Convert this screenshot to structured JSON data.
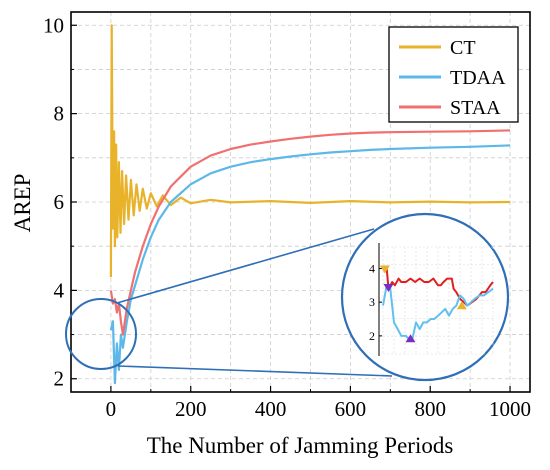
{
  "chart_data": {
    "type": "line",
    "title": "",
    "xlabel": "The Number of Jamming Periods",
    "ylabel": "AREP",
    "xlim": [
      -100,
      1050
    ],
    "ylim": [
      1.7,
      10.3
    ],
    "xticks": [
      0,
      200,
      400,
      600,
      800,
      1000
    ],
    "yticks": [
      2,
      4,
      6,
      8,
      10
    ],
    "grid": true,
    "legend_position": "top-right",
    "series": [
      {
        "name": "CT",
        "color": "#E8B22A",
        "points": [
          [
            0,
            4.3
          ],
          [
            2,
            10.0
          ],
          [
            5,
            5.4
          ],
          [
            8,
            7.6
          ],
          [
            10,
            5.0
          ],
          [
            13,
            7.3
          ],
          [
            16,
            5.2
          ],
          [
            20,
            6.9
          ],
          [
            24,
            5.3
          ],
          [
            28,
            6.7
          ],
          [
            33,
            5.5
          ],
          [
            38,
            6.6
          ],
          [
            44,
            5.6
          ],
          [
            50,
            6.5
          ],
          [
            57,
            5.7
          ],
          [
            64,
            6.4
          ],
          [
            72,
            5.8
          ],
          [
            80,
            6.3
          ],
          [
            90,
            5.85
          ],
          [
            100,
            6.2
          ],
          [
            115,
            5.9
          ],
          [
            130,
            6.15
          ],
          [
            150,
            5.93
          ],
          [
            175,
            6.1
          ],
          [
            200,
            5.97
          ],
          [
            250,
            6.05
          ],
          [
            300,
            5.99
          ],
          [
            400,
            6.02
          ],
          [
            500,
            5.98
          ],
          [
            600,
            6.02
          ],
          [
            700,
            5.99
          ],
          [
            800,
            6.01
          ],
          [
            900,
            5.99
          ],
          [
            1000,
            6.0
          ]
        ]
      },
      {
        "name": "TDAA",
        "color": "#5BB8E8",
        "points": [
          [
            0,
            3.1
          ],
          [
            5,
            3.3
          ],
          [
            10,
            1.9
          ],
          [
            15,
            2.8
          ],
          [
            20,
            2.2
          ],
          [
            25,
            3.0
          ],
          [
            30,
            2.7
          ],
          [
            40,
            3.3
          ],
          [
            50,
            3.8
          ],
          [
            60,
            4.1
          ],
          [
            80,
            4.7
          ],
          [
            100,
            5.2
          ],
          [
            120,
            5.6
          ],
          [
            150,
            6.0
          ],
          [
            200,
            6.4
          ],
          [
            250,
            6.65
          ],
          [
            300,
            6.8
          ],
          [
            350,
            6.9
          ],
          [
            400,
            6.97
          ],
          [
            450,
            7.03
          ],
          [
            500,
            7.08
          ],
          [
            550,
            7.12
          ],
          [
            600,
            7.15
          ],
          [
            650,
            7.18
          ],
          [
            700,
            7.2
          ],
          [
            800,
            7.23
          ],
          [
            900,
            7.25
          ],
          [
            1000,
            7.28
          ]
        ]
      },
      {
        "name": "STAA",
        "color": "#F07070",
        "points": [
          [
            0,
            4.0
          ],
          [
            5,
            3.7
          ],
          [
            10,
            3.8
          ],
          [
            15,
            3.5
          ],
          [
            20,
            3.7
          ],
          [
            25,
            3.3
          ],
          [
            30,
            3.0
          ],
          [
            40,
            3.6
          ],
          [
            50,
            4.0
          ],
          [
            60,
            4.4
          ],
          [
            80,
            5.0
          ],
          [
            100,
            5.5
          ],
          [
            120,
            5.9
          ],
          [
            150,
            6.35
          ],
          [
            200,
            6.8
          ],
          [
            250,
            7.05
          ],
          [
            300,
            7.2
          ],
          [
            350,
            7.3
          ],
          [
            400,
            7.37
          ],
          [
            450,
            7.43
          ],
          [
            500,
            7.48
          ],
          [
            550,
            7.52
          ],
          [
            600,
            7.55
          ],
          [
            650,
            7.57
          ],
          [
            700,
            7.58
          ],
          [
            800,
            7.59
          ],
          [
            900,
            7.6
          ],
          [
            1000,
            7.62
          ]
        ]
      }
    ],
    "inset": {
      "yticks": [
        "4",
        "3",
        "2"
      ],
      "ylim": [
        1.7,
        4.4
      ],
      "series": [
        {
          "name": "STAA",
          "color": "#E02020",
          "points": [
            [
              0,
              4.0
            ],
            [
              4,
              4.0
            ],
            [
              6,
              3.4
            ],
            [
              10,
              3.6
            ],
            [
              13,
              3.5
            ],
            [
              17,
              3.7
            ],
            [
              20,
              3.6
            ],
            [
              25,
              3.6
            ],
            [
              30,
              3.7
            ],
            [
              35,
              3.6
            ],
            [
              40,
              3.7
            ],
            [
              45,
              3.6
            ],
            [
              50,
              3.6
            ],
            [
              55,
              3.7
            ],
            [
              60,
              3.5
            ],
            [
              63,
              3.5
            ],
            [
              66,
              3.6
            ],
            [
              70,
              3.7
            ],
            [
              75,
              3.7
            ],
            [
              77,
              3.4
            ],
            [
              80,
              3.3
            ],
            [
              84,
              3.1
            ],
            [
              88,
              3.0
            ],
            [
              92,
              2.9
            ],
            [
              97,
              3.0
            ],
            [
              102,
              3.1
            ],
            [
              108,
              3.3
            ],
            [
              112,
              3.3
            ],
            [
              117,
              3.5
            ],
            [
              120,
              3.6
            ]
          ]
        },
        {
          "name": "TDAA",
          "color": "#60C0F0",
          "points": [
            [
              0,
              2.9
            ],
            [
              4,
              3.5
            ],
            [
              8,
              3.4
            ],
            [
              12,
              2.4
            ],
            [
              16,
              2.2
            ],
            [
              20,
              2.0
            ],
            [
              25,
              2.0
            ],
            [
              28,
              1.9
            ],
            [
              32,
              1.9
            ],
            [
              36,
              2.4
            ],
            [
              40,
              2.2
            ],
            [
              44,
              2.4
            ],
            [
              48,
              2.4
            ],
            [
              52,
              2.5
            ],
            [
              56,
              2.5
            ],
            [
              60,
              2.6
            ],
            [
              64,
              2.7
            ],
            [
              68,
              2.8
            ],
            [
              72,
              2.6
            ],
            [
              76,
              2.8
            ],
            [
              80,
              2.9
            ],
            [
              84,
              3.2
            ],
            [
              88,
              3.1
            ],
            [
              92,
              2.9
            ],
            [
              96,
              3.0
            ],
            [
              100,
              3.1
            ],
            [
              105,
              3.2
            ],
            [
              110,
              3.2
            ],
            [
              115,
              3.3
            ],
            [
              120,
              3.4
            ]
          ]
        }
      ],
      "markers": [
        {
          "color": "#E8B22A",
          "shape": "triangle-down",
          "x": 2,
          "y": 4.0
        },
        {
          "color": "#7A2EC0",
          "shape": "triangle-down",
          "x": 6,
          "y": 3.45
        },
        {
          "color": "#7A2EC0",
          "shape": "triangle-up",
          "x": 30,
          "y": 1.9
        },
        {
          "color": "#E8B22A",
          "shape": "triangle-up",
          "x": 86,
          "y": 2.88
        }
      ]
    }
  }
}
